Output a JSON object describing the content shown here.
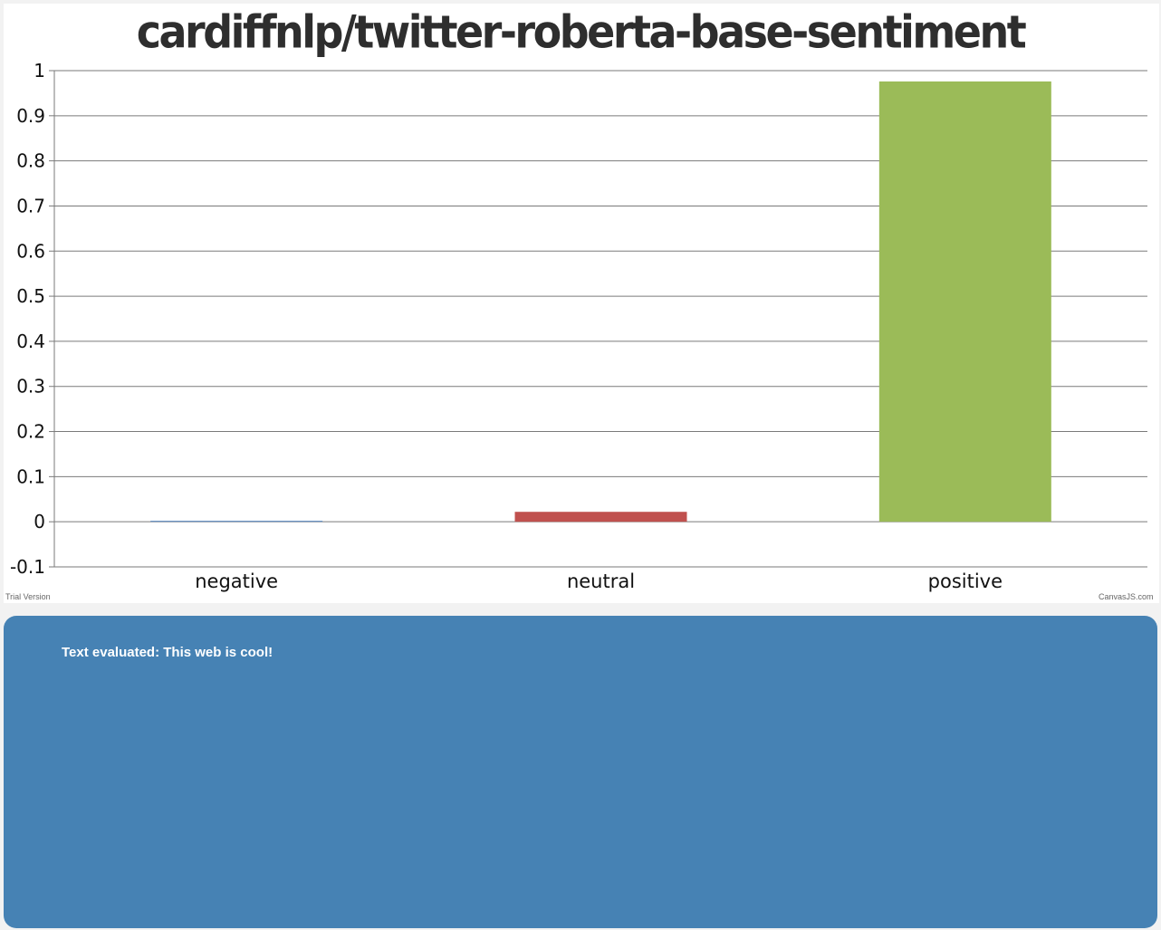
{
  "chart_data": {
    "type": "bar",
    "title": "cardiffnlp/twitter-roberta-base-sentiment",
    "categories": [
      "negative",
      "neutral",
      "positive"
    ],
    "values": [
      0.002,
      0.022,
      0.976
    ],
    "colors": [
      "#4f81bc",
      "#c0504e",
      "#9bbb58"
    ],
    "ylim": [
      -0.1,
      1
    ],
    "yticks": [
      "1",
      "0.9",
      "0.8",
      "0.7",
      "0.6",
      "0.5",
      "0.4",
      "0.3",
      "0.2",
      "0.1",
      "0",
      "-0.1"
    ],
    "grid": true,
    "xlabel": "",
    "ylabel": ""
  },
  "credits": {
    "trial": "Trial Version",
    "brand": "CanvasJS.com"
  },
  "result": {
    "text": "Text evaluated: This web is cool!"
  }
}
